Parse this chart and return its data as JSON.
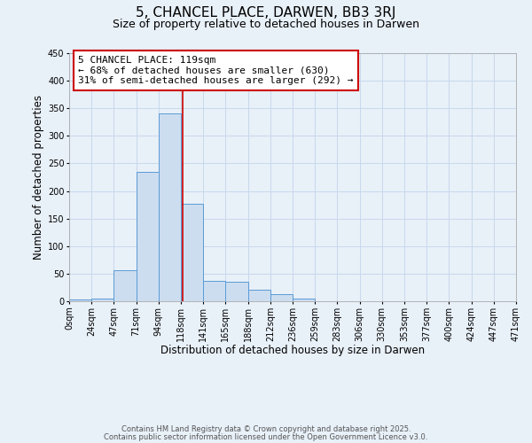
{
  "title": "5, CHANCEL PLACE, DARWEN, BB3 3RJ",
  "subtitle": "Size of property relative to detached houses in Darwen",
  "xlabel": "Distribution of detached houses by size in Darwen",
  "ylabel": "Number of detached properties",
  "bar_left_edges": [
    0,
    23.5,
    47,
    70.5,
    94,
    117.5,
    141,
    164.5,
    188,
    211.5,
    235,
    258.5,
    282,
    305.5,
    329,
    352.5,
    376,
    399.5,
    423,
    446.5
  ],
  "bar_heights": [
    3,
    5,
    56,
    234,
    340,
    176,
    37,
    35,
    21,
    13,
    5,
    0,
    0,
    0,
    0,
    0,
    0,
    0,
    0,
    0
  ],
  "bar_width": 23.5,
  "bar_facecolor": "#ccddf0",
  "bar_edgecolor": "#5b9bd5",
  "x_tick_labels": [
    "0sqm",
    "24sqm",
    "47sqm",
    "71sqm",
    "94sqm",
    "118sqm",
    "141sqm",
    "165sqm",
    "188sqm",
    "212sqm",
    "236sqm",
    "259sqm",
    "283sqm",
    "306sqm",
    "330sqm",
    "353sqm",
    "377sqm",
    "400sqm",
    "424sqm",
    "447sqm",
    "471sqm"
  ],
  "x_tick_positions": [
    0,
    23.5,
    47,
    70.5,
    94,
    117.5,
    141,
    164.5,
    188,
    211.5,
    235,
    258.5,
    282,
    305.5,
    329,
    352.5,
    376,
    399.5,
    423,
    446.5,
    470
  ],
  "ylim": [
    0,
    450
  ],
  "xlim": [
    0,
    470
  ],
  "yticks": [
    0,
    50,
    100,
    150,
    200,
    250,
    300,
    350,
    400,
    450
  ],
  "property_line_x": 119,
  "annotation_title": "5 CHANCEL PLACE: 119sqm",
  "annotation_line1": "← 68% of detached houses are smaller (630)",
  "annotation_line2": "31% of semi-detached houses are larger (292) →",
  "annotation_box_color": "#ffffff",
  "annotation_box_edgecolor": "#cc0000",
  "property_line_color": "#cc0000",
  "grid_color": "#c8d8ec",
  "background_color": "#e8f0f8",
  "footer1": "Contains HM Land Registry data © Crown copyright and database right 2025.",
  "footer2": "Contains public sector information licensed under the Open Government Licence v3.0.",
  "title_fontsize": 11,
  "subtitle_fontsize": 9,
  "axis_label_fontsize": 8.5,
  "tick_fontsize": 7,
  "annotation_fontsize": 8,
  "footer_fontsize": 6
}
